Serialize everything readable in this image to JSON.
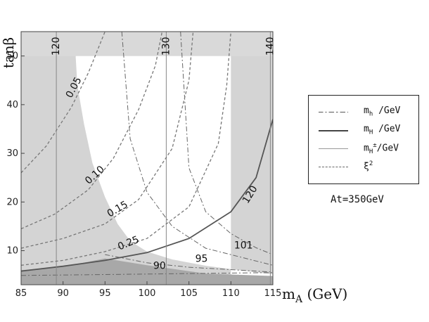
{
  "chart_data": {
    "type": "line",
    "xlim": [
      85,
      115
    ],
    "ylim": [
      3,
      55
    ],
    "x_ticks": [
      "85",
      "90",
      "95",
      "100",
      "105",
      "110",
      "115"
    ],
    "y_ticks": [
      "10",
      "20",
      "30",
      "40",
      "50"
    ],
    "xlabel": "m",
    "xlabel_sub": "A",
    "xlabel_unit": " (GeV)",
    "ylabel": "tanβ",
    "legend_position": "right",
    "legend": [
      {
        "name": "m",
        "sub": "h",
        "sup": "",
        "unit": " /GeV",
        "style": "dash-dot"
      },
      {
        "name": "m",
        "sub": "H",
        "sup": "",
        "unit": " /GeV",
        "style": "solid-dark"
      },
      {
        "name": "m",
        "sub": "H",
        "sup": "±",
        "unit": "/GeV",
        "style": "solid-light"
      },
      {
        "name": "ξ",
        "sub": "",
        "sup": "2",
        "unit": "",
        "style": "dashed"
      }
    ],
    "note": "At=350GeV",
    "series": [
      {
        "kind": "mh",
        "label": "90",
        "points": [
          [
            85,
            4.9
          ],
          [
            95,
            5.1
          ],
          [
            105,
            5.3
          ],
          [
            115,
            5.5
          ]
        ]
      },
      {
        "kind": "mh",
        "label": "95",
        "points": [
          [
            95,
            9.2
          ],
          [
            100,
            7.5
          ],
          [
            105,
            6.6
          ],
          [
            115,
            5.6
          ]
        ]
      },
      {
        "kind": "mh",
        "label": "101",
        "points": [
          [
            104,
            55
          ],
          [
            105,
            27
          ],
          [
            107,
            18
          ],
          [
            110,
            13.5
          ],
          [
            113,
            10.6
          ],
          [
            115,
            9.2
          ]
        ]
      },
      {
        "kind": "mh",
        "label": "",
        "points": [
          [
            97,
            55
          ],
          [
            98,
            33
          ],
          [
            100,
            22
          ],
          [
            103,
            15
          ],
          [
            107,
            10.5
          ],
          [
            115,
            7
          ]
        ]
      },
      {
        "kind": "mH",
        "label": "120",
        "points": [
          [
            85,
            5.8
          ],
          [
            90,
            6.8
          ],
          [
            95,
            8.0
          ],
          [
            100,
            9.6
          ],
          [
            105,
            12.5
          ],
          [
            110,
            18
          ],
          [
            113,
            25
          ],
          [
            115,
            37
          ]
        ]
      },
      {
        "kind": "mHpm",
        "label": "120",
        "points": [
          [
            89.2,
            3
          ],
          [
            89.2,
            55
          ]
        ]
      },
      {
        "kind": "mHpm",
        "label": "130",
        "points": [
          [
            102.3,
            3
          ],
          [
            102.3,
            55
          ]
        ]
      },
      {
        "kind": "mHpm",
        "label": "140",
        "points": [
          [
            114.7,
            3
          ],
          [
            114.7,
            55
          ]
        ]
      },
      {
        "kind": "xi2",
        "label": "0.05",
        "points": [
          [
            85,
            26
          ],
          [
            88,
            31.5
          ],
          [
            91,
            39.5
          ],
          [
            93,
            46.5
          ],
          [
            95,
            55
          ]
        ]
      },
      {
        "kind": "xi2",
        "label": "0.10",
        "points": [
          [
            85,
            14.5
          ],
          [
            89,
            17.5
          ],
          [
            93,
            22.5
          ],
          [
            96,
            29
          ],
          [
            99,
            39
          ],
          [
            101,
            48
          ],
          [
            101.8,
            55
          ]
        ]
      },
      {
        "kind": "xi2",
        "label": "0.15",
        "points": [
          [
            85,
            10.5
          ],
          [
            90,
            12.5
          ],
          [
            95,
            15.5
          ],
          [
            99,
            20.5
          ],
          [
            103,
            31
          ],
          [
            105,
            45
          ],
          [
            105.5,
            55
          ]
        ]
      },
      {
        "kind": "xi2",
        "label": "0.25",
        "points": [
          [
            85,
            7
          ],
          [
            90,
            8
          ],
          [
            95,
            9.8
          ],
          [
            100,
            12.5
          ],
          [
            105,
            19
          ],
          [
            108.5,
            32
          ],
          [
            109.5,
            44
          ],
          [
            110,
            55
          ]
        ]
      }
    ],
    "regions": [
      {
        "shade": "light",
        "points": [
          [
            85,
            3
          ],
          [
            115,
            3
          ],
          [
            115,
            55
          ],
          [
            85,
            55
          ]
        ]
      },
      {
        "shade": "white",
        "points": [
          [
            91.5,
            50
          ],
          [
            91.7,
            44
          ],
          [
            92.5,
            36
          ],
          [
            93.5,
            28
          ],
          [
            95,
            21
          ],
          [
            96.5,
            15.5
          ],
          [
            98,
            12
          ],
          [
            100,
            9.8
          ],
          [
            103,
            8.2
          ],
          [
            107,
            6.9
          ],
          [
            115,
            5.1
          ],
          [
            115,
            3.5
          ],
          [
            103,
            3.5
          ],
          [
            110,
            3.5
          ],
          [
            110,
            50
          ]
        ]
      },
      {
        "shade": "dark",
        "points": [
          [
            85,
            3
          ],
          [
            115,
            3
          ],
          [
            115,
            4.8
          ],
          [
            107,
            5.3
          ],
          [
            100,
            7.0
          ],
          [
            95,
            8.4
          ],
          [
            90,
            6.7
          ],
          [
            85,
            6.0
          ]
        ]
      },
      {
        "shade": "band",
        "points": [
          [
            85,
            50
          ],
          [
            115,
            50
          ],
          [
            115,
            55
          ],
          [
            85,
            55
          ]
        ]
      }
    ],
    "contour_labels": [
      {
        "text": "120",
        "x": 89.2,
        "y": 52,
        "rotate": -90
      },
      {
        "text": "130",
        "x": 102.3,
        "y": 52,
        "rotate": -90
      },
      {
        "text": "140",
        "x": 114.7,
        "y": 52,
        "rotate": -90
      },
      {
        "text": "0.05",
        "x": 91.3,
        "y": 43.5,
        "rotate": -62
      },
      {
        "text": "0.10",
        "x": 93.8,
        "y": 25.5,
        "rotate": -42
      },
      {
        "text": "0.15",
        "x": 96.5,
        "y": 18.5,
        "rotate": -30
      },
      {
        "text": "0.25",
        "x": 97.8,
        "y": 11.5,
        "rotate": -22
      },
      {
        "text": "120",
        "x": 112.3,
        "y": 21.5,
        "rotate": -58
      },
      {
        "text": "90",
        "x": 101.5,
        "y": 6.8,
        "rotate": 0
      },
      {
        "text": "95",
        "x": 106.5,
        "y": 8.3,
        "rotate": 0
      },
      {
        "text": "101",
        "x": 111.5,
        "y": 11.0,
        "rotate": 0
      }
    ]
  }
}
